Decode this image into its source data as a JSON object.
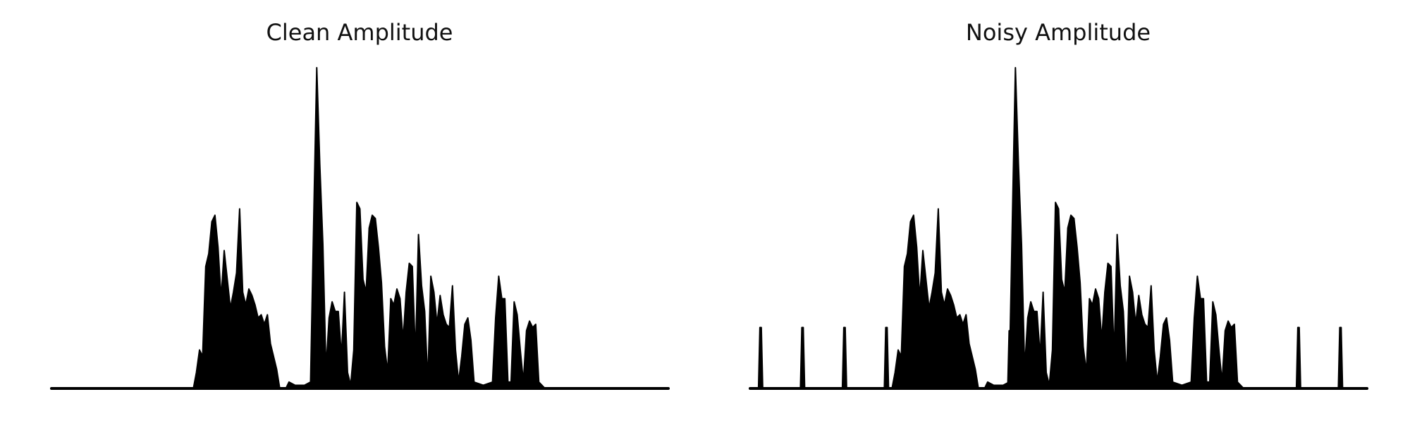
{
  "figure": {
    "background": "#ffffff",
    "line_color": "#000000"
  },
  "chart_data": [
    {
      "type": "area",
      "title": "Clean Amplitude",
      "xlabel": "",
      "ylabel": "",
      "axes": "off",
      "grid": false,
      "xlim": [
        0,
        1
      ],
      "ylim": [
        0,
        1
      ],
      "envelope": [
        [
          0.0,
          0.0
        ],
        [
          0.23,
          0.0
        ],
        [
          0.235,
          0.05
        ],
        [
          0.24,
          0.12
        ],
        [
          0.245,
          0.1
        ],
        [
          0.25,
          0.38
        ],
        [
          0.255,
          0.42
        ],
        [
          0.26,
          0.52
        ],
        [
          0.265,
          0.54
        ],
        [
          0.27,
          0.44
        ],
        [
          0.275,
          0.28
        ],
        [
          0.28,
          0.43
        ],
        [
          0.285,
          0.34
        ],
        [
          0.29,
          0.25
        ],
        [
          0.295,
          0.3
        ],
        [
          0.3,
          0.36
        ],
        [
          0.305,
          0.56
        ],
        [
          0.31,
          0.3
        ],
        [
          0.315,
          0.26
        ],
        [
          0.32,
          0.31
        ],
        [
          0.325,
          0.29
        ],
        [
          0.33,
          0.26
        ],
        [
          0.335,
          0.22
        ],
        [
          0.34,
          0.23
        ],
        [
          0.345,
          0.2
        ],
        [
          0.35,
          0.23
        ],
        [
          0.355,
          0.14
        ],
        [
          0.36,
          0.1
        ],
        [
          0.365,
          0.06
        ],
        [
          0.37,
          0.0
        ],
        [
          0.38,
          0.0
        ],
        [
          0.385,
          0.02
        ],
        [
          0.395,
          0.01
        ],
        [
          0.41,
          0.01
        ],
        [
          0.42,
          0.02
        ],
        [
          0.426,
          0.62
        ],
        [
          0.43,
          1.0
        ],
        [
          0.435,
          0.7
        ],
        [
          0.44,
          0.45
        ],
        [
          0.445,
          0.06
        ],
        [
          0.45,
          0.22
        ],
        [
          0.455,
          0.27
        ],
        [
          0.46,
          0.24
        ],
        [
          0.465,
          0.24
        ],
        [
          0.47,
          0.1
        ],
        [
          0.475,
          0.3
        ],
        [
          0.48,
          0.05
        ],
        [
          0.485,
          0.01
        ],
        [
          0.49,
          0.12
        ],
        [
          0.495,
          0.58
        ],
        [
          0.5,
          0.56
        ],
        [
          0.505,
          0.34
        ],
        [
          0.51,
          0.3
        ],
        [
          0.515,
          0.5
        ],
        [
          0.52,
          0.54
        ],
        [
          0.525,
          0.53
        ],
        [
          0.53,
          0.44
        ],
        [
          0.535,
          0.33
        ],
        [
          0.54,
          0.13
        ],
        [
          0.545,
          0.05
        ],
        [
          0.55,
          0.28
        ],
        [
          0.555,
          0.26
        ],
        [
          0.56,
          0.31
        ],
        [
          0.565,
          0.28
        ],
        [
          0.57,
          0.15
        ],
        [
          0.575,
          0.3
        ],
        [
          0.58,
          0.39
        ],
        [
          0.585,
          0.38
        ],
        [
          0.59,
          0.1
        ],
        [
          0.595,
          0.48
        ],
        [
          0.6,
          0.32
        ],
        [
          0.605,
          0.24
        ],
        [
          0.61,
          0.02
        ],
        [
          0.615,
          0.35
        ],
        [
          0.62,
          0.3
        ],
        [
          0.625,
          0.2
        ],
        [
          0.63,
          0.29
        ],
        [
          0.635,
          0.23
        ],
        [
          0.64,
          0.2
        ],
        [
          0.645,
          0.19
        ],
        [
          0.65,
          0.32
        ],
        [
          0.655,
          0.12
        ],
        [
          0.66,
          0.02
        ],
        [
          0.665,
          0.1
        ],
        [
          0.67,
          0.2
        ],
        [
          0.675,
          0.22
        ],
        [
          0.68,
          0.15
        ],
        [
          0.685,
          0.02
        ],
        [
          0.7,
          0.01
        ],
        [
          0.715,
          0.02
        ],
        [
          0.72,
          0.22
        ],
        [
          0.725,
          0.35
        ],
        [
          0.73,
          0.28
        ],
        [
          0.735,
          0.28
        ],
        [
          0.74,
          0.02
        ],
        [
          0.745,
          0.02
        ],
        [
          0.75,
          0.27
        ],
        [
          0.755,
          0.23
        ],
        [
          0.76,
          0.12
        ],
        [
          0.765,
          0.02
        ],
        [
          0.77,
          0.18
        ],
        [
          0.775,
          0.21
        ],
        [
          0.78,
          0.19
        ],
        [
          0.785,
          0.2
        ],
        [
          0.79,
          0.02
        ],
        [
          0.8,
          0.0
        ],
        [
          1.0,
          0.0
        ]
      ],
      "impulses": []
    },
    {
      "type": "area",
      "title": "Noisy Amplitude",
      "xlabel": "",
      "ylabel": "",
      "axes": "off",
      "grid": false,
      "xlim": [
        0,
        1
      ],
      "ylim": [
        0,
        1
      ],
      "envelope": [
        [
          0.0,
          0.0
        ],
        [
          0.23,
          0.0
        ],
        [
          0.235,
          0.05
        ],
        [
          0.24,
          0.12
        ],
        [
          0.245,
          0.1
        ],
        [
          0.25,
          0.38
        ],
        [
          0.255,
          0.42
        ],
        [
          0.26,
          0.52
        ],
        [
          0.265,
          0.54
        ],
        [
          0.27,
          0.44
        ],
        [
          0.275,
          0.28
        ],
        [
          0.28,
          0.43
        ],
        [
          0.285,
          0.34
        ],
        [
          0.29,
          0.25
        ],
        [
          0.295,
          0.3
        ],
        [
          0.3,
          0.36
        ],
        [
          0.305,
          0.56
        ],
        [
          0.31,
          0.3
        ],
        [
          0.315,
          0.26
        ],
        [
          0.32,
          0.31
        ],
        [
          0.325,
          0.29
        ],
        [
          0.33,
          0.26
        ],
        [
          0.335,
          0.22
        ],
        [
          0.34,
          0.23
        ],
        [
          0.345,
          0.2
        ],
        [
          0.35,
          0.23
        ],
        [
          0.355,
          0.14
        ],
        [
          0.36,
          0.1
        ],
        [
          0.365,
          0.06
        ],
        [
          0.37,
          0.0
        ],
        [
          0.38,
          0.0
        ],
        [
          0.385,
          0.02
        ],
        [
          0.395,
          0.01
        ],
        [
          0.41,
          0.01
        ],
        [
          0.42,
          0.02
        ],
        [
          0.426,
          0.62
        ],
        [
          0.43,
          1.0
        ],
        [
          0.435,
          0.7
        ],
        [
          0.44,
          0.45
        ],
        [
          0.445,
          0.06
        ],
        [
          0.45,
          0.22
        ],
        [
          0.455,
          0.27
        ],
        [
          0.46,
          0.24
        ],
        [
          0.465,
          0.24
        ],
        [
          0.47,
          0.1
        ],
        [
          0.475,
          0.3
        ],
        [
          0.48,
          0.05
        ],
        [
          0.485,
          0.01
        ],
        [
          0.49,
          0.12
        ],
        [
          0.495,
          0.58
        ],
        [
          0.5,
          0.56
        ],
        [
          0.505,
          0.34
        ],
        [
          0.51,
          0.3
        ],
        [
          0.515,
          0.5
        ],
        [
          0.52,
          0.54
        ],
        [
          0.525,
          0.53
        ],
        [
          0.53,
          0.44
        ],
        [
          0.535,
          0.33
        ],
        [
          0.54,
          0.13
        ],
        [
          0.545,
          0.05
        ],
        [
          0.55,
          0.28
        ],
        [
          0.555,
          0.26
        ],
        [
          0.56,
          0.31
        ],
        [
          0.565,
          0.28
        ],
        [
          0.57,
          0.15
        ],
        [
          0.575,
          0.3
        ],
        [
          0.58,
          0.39
        ],
        [
          0.585,
          0.38
        ],
        [
          0.59,
          0.1
        ],
        [
          0.595,
          0.48
        ],
        [
          0.6,
          0.32
        ],
        [
          0.605,
          0.24
        ],
        [
          0.61,
          0.02
        ],
        [
          0.615,
          0.35
        ],
        [
          0.62,
          0.3
        ],
        [
          0.625,
          0.2
        ],
        [
          0.63,
          0.29
        ],
        [
          0.635,
          0.23
        ],
        [
          0.64,
          0.2
        ],
        [
          0.645,
          0.19
        ],
        [
          0.65,
          0.32
        ],
        [
          0.655,
          0.12
        ],
        [
          0.66,
          0.02
        ],
        [
          0.665,
          0.1
        ],
        [
          0.67,
          0.2
        ],
        [
          0.675,
          0.22
        ],
        [
          0.68,
          0.15
        ],
        [
          0.685,
          0.02
        ],
        [
          0.7,
          0.01
        ],
        [
          0.715,
          0.02
        ],
        [
          0.72,
          0.22
        ],
        [
          0.725,
          0.35
        ],
        [
          0.73,
          0.28
        ],
        [
          0.735,
          0.28
        ],
        [
          0.74,
          0.02
        ],
        [
          0.745,
          0.02
        ],
        [
          0.75,
          0.27
        ],
        [
          0.755,
          0.23
        ],
        [
          0.76,
          0.12
        ],
        [
          0.765,
          0.02
        ],
        [
          0.77,
          0.18
        ],
        [
          0.775,
          0.21
        ],
        [
          0.78,
          0.19
        ],
        [
          0.785,
          0.2
        ],
        [
          0.79,
          0.02
        ],
        [
          0.8,
          0.0
        ],
        [
          1.0,
          0.0
        ]
      ],
      "impulses": [
        [
          0.017,
          0.19
        ],
        [
          0.085,
          0.19
        ],
        [
          0.153,
          0.19
        ],
        [
          0.221,
          0.19
        ],
        [
          0.421,
          0.18
        ],
        [
          0.889,
          0.19
        ],
        [
          0.957,
          0.19
        ]
      ]
    }
  ]
}
